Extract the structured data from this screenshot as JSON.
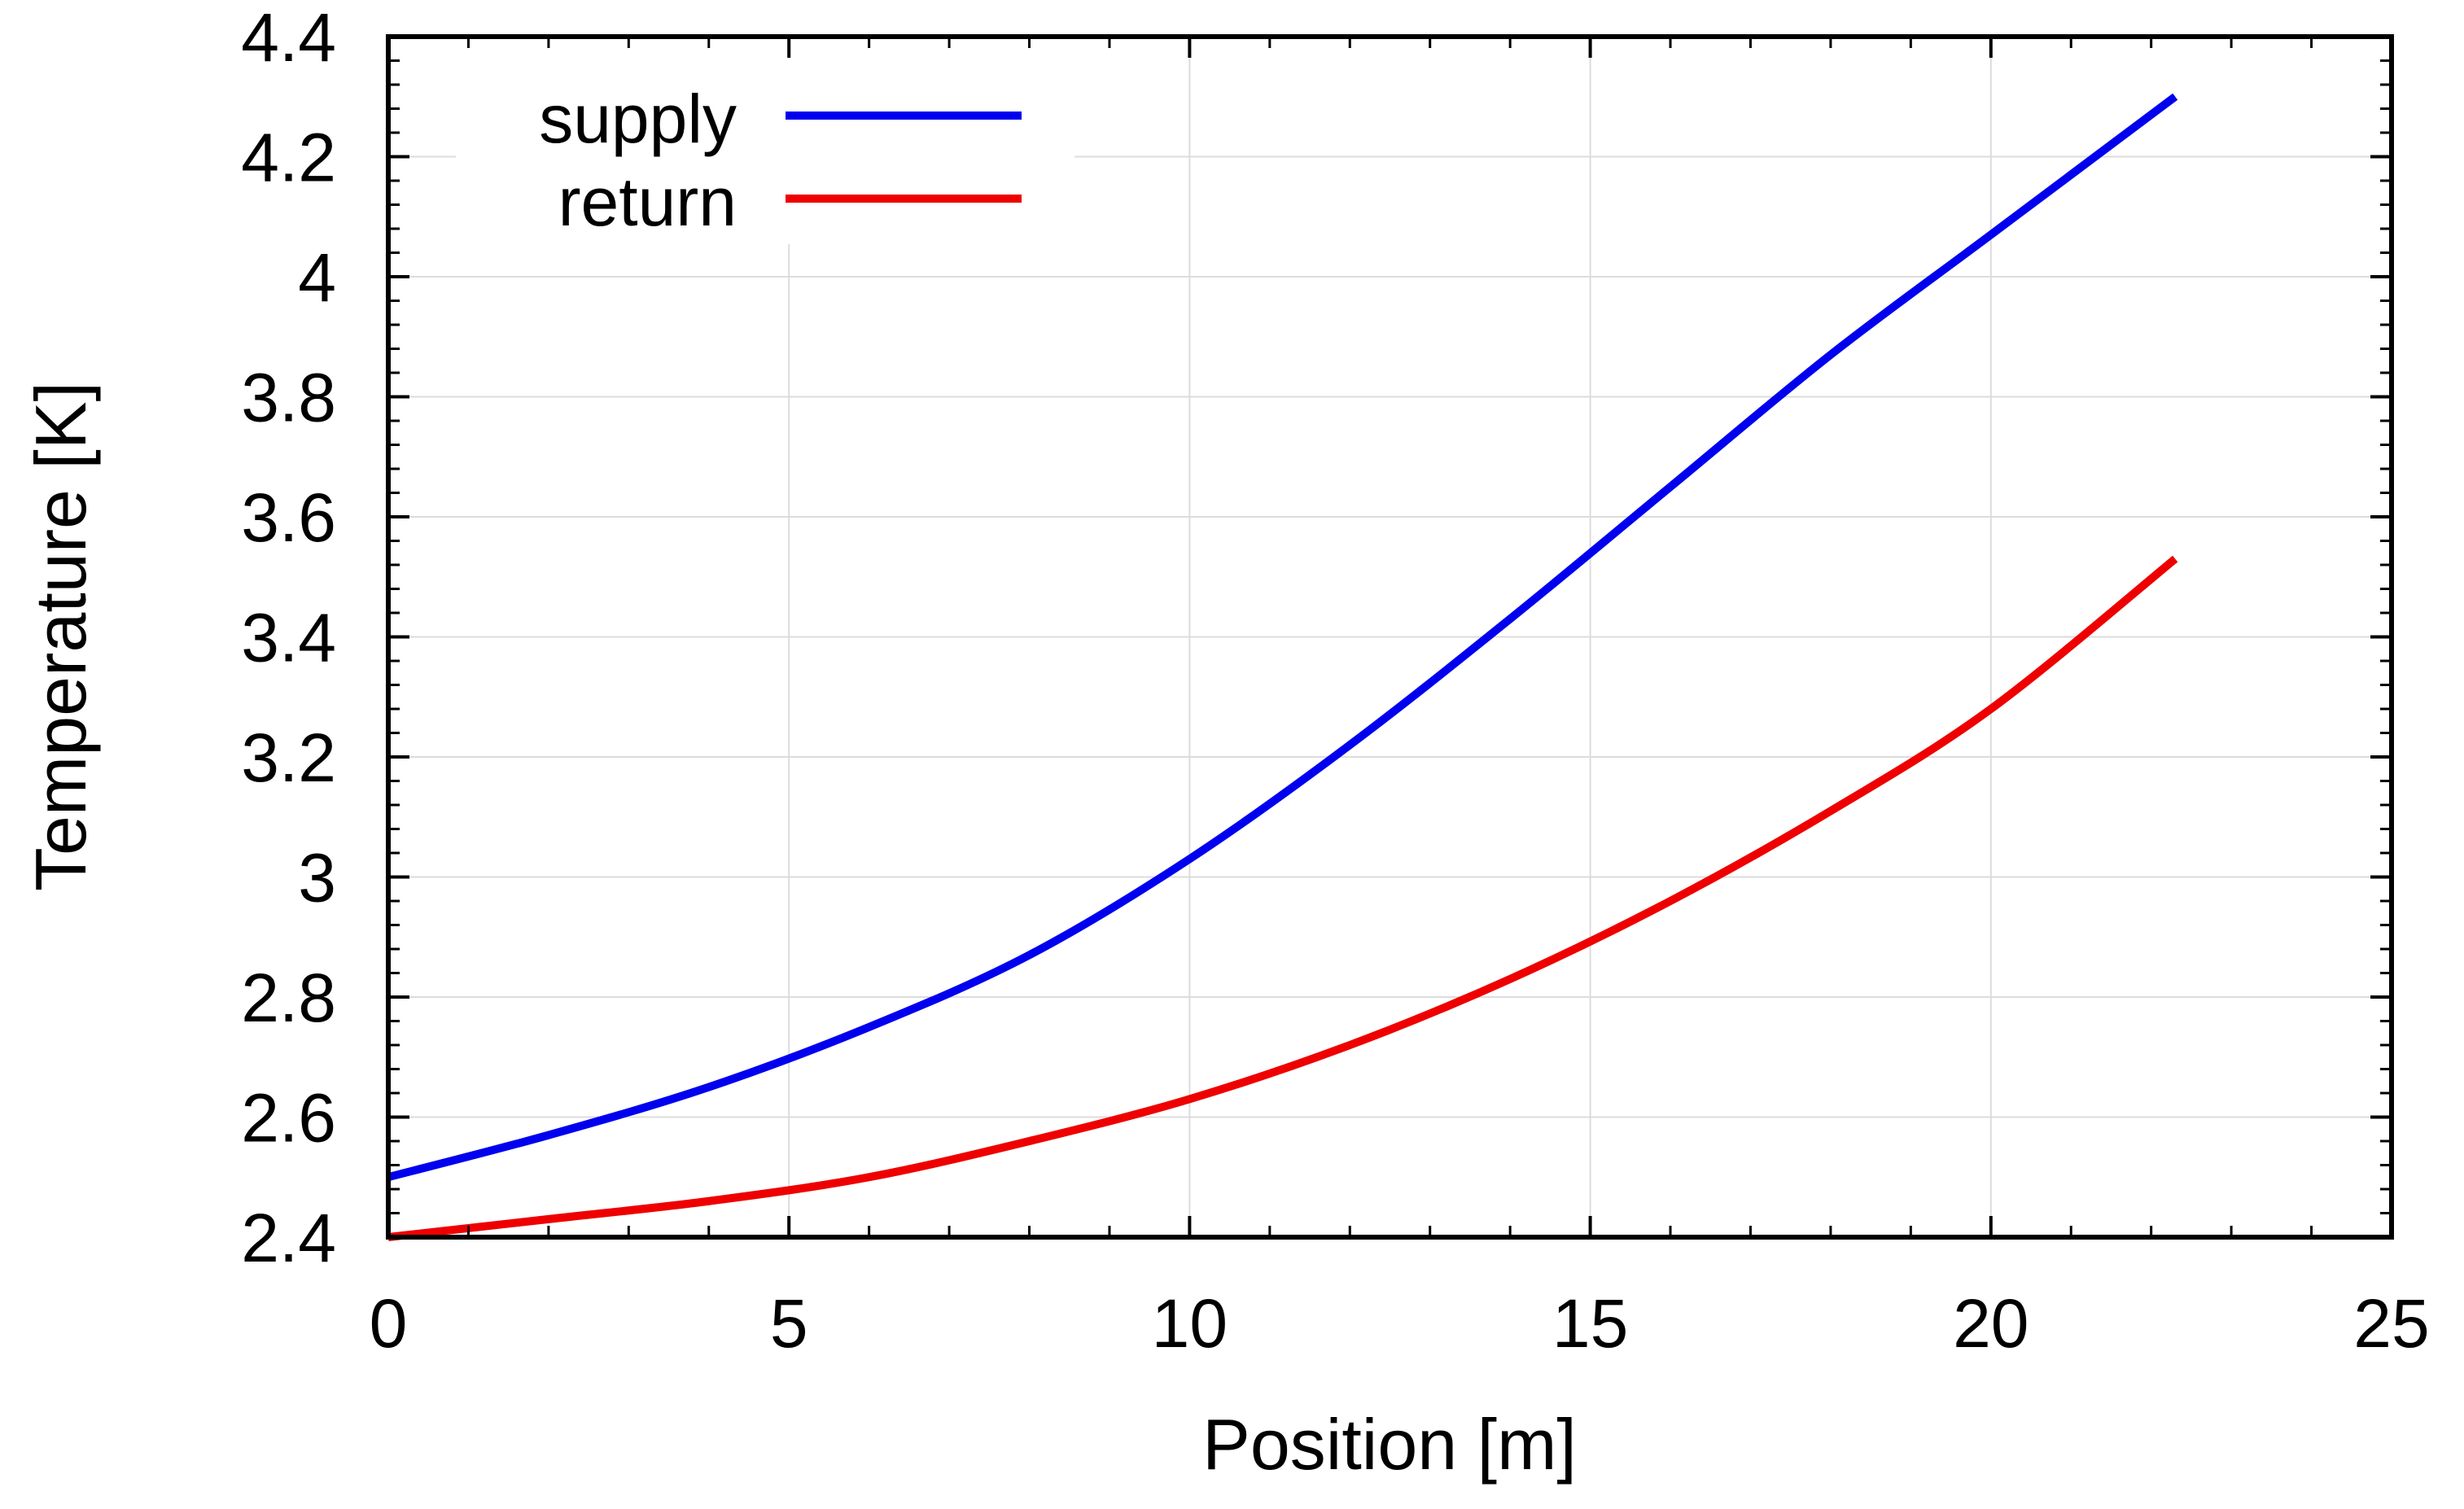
{
  "chart_data": {
    "type": "line",
    "title": "",
    "xlabel": "Position [m]",
    "ylabel": "Temperature [K]",
    "xlim": [
      0,
      25
    ],
    "ylim": [
      2.4,
      4.4
    ],
    "xticks": [
      "0",
      "5",
      "10",
      "15",
      "20",
      "25"
    ],
    "yticks": [
      "2.4",
      "2.6",
      "2.8",
      "3",
      "3.2",
      "3.4",
      "3.6",
      "3.8",
      "4",
      "4.2",
      "4.4"
    ],
    "xtick_values": [
      0,
      5,
      10,
      15,
      20,
      25
    ],
    "ytick_values": [
      2.4,
      2.6,
      2.8,
      3.0,
      3.2,
      3.4,
      3.6,
      3.8,
      4.0,
      4.2,
      4.4
    ],
    "grid": true,
    "legend_position": "top-left",
    "series": [
      {
        "name": "supply",
        "color": "#0000ee",
        "x": [
          0,
          2,
          4,
          6,
          8,
          10,
          12,
          14,
          16,
          18,
          20,
          22.3
        ],
        "y": [
          2.5,
          2.57,
          2.65,
          2.75,
          2.87,
          3.03,
          3.22,
          3.43,
          3.65,
          3.87,
          4.07,
          4.3
        ]
      },
      {
        "name": "return",
        "color": "#ee0000",
        "x": [
          0,
          2,
          4,
          6,
          8,
          10,
          12,
          14,
          16,
          18,
          20,
          22.3
        ],
        "y": [
          2.4,
          2.43,
          2.46,
          2.5,
          2.56,
          2.63,
          2.72,
          2.83,
          2.96,
          3.11,
          3.28,
          3.53
        ]
      }
    ]
  }
}
